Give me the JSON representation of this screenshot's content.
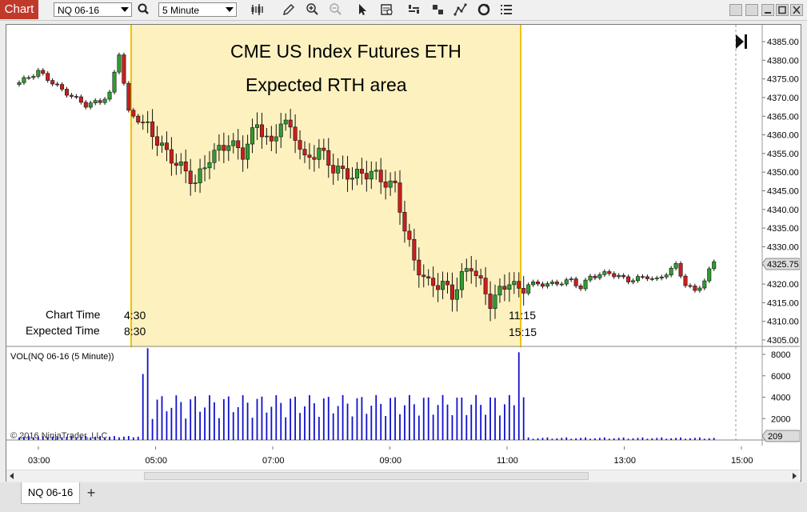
{
  "toolbar": {
    "chart_tab": "Chart",
    "instrument": "NQ 06-16",
    "interval": "5 Minute",
    "icons": [
      "bars-type-icon",
      "pencil-icon",
      "zoom-in-icon",
      "zoom-out-icon",
      "pointer-icon",
      "data-box-icon",
      "chart-properties-icon",
      "hierarchy-icon",
      "strategy-icon",
      "reload-icon",
      "list-icon"
    ]
  },
  "window": {
    "buttons": [
      "tile-icon",
      "restore-down-icon",
      "minimize-icon",
      "maximize-icon",
      "close-icon"
    ]
  },
  "chart": {
    "title_line1": "CME US Index Futures ETH",
    "title_line2": "Expected RTH area",
    "chart_time_label": "Chart Time",
    "chart_time_start": "4:30",
    "chart_time_end": "11:15",
    "expected_time_label": "Expected Time",
    "expected_time_start": "8:30",
    "expected_time_end": "15:15",
    "volume_label": "VOL(NQ 06-16 (5 Minute))",
    "copyright": "© 2016 NinjaTrader, LLC",
    "price_tag": "4325.75",
    "volume_tag": "209",
    "price_ticks": [
      "4385.00",
      "4380.00",
      "4375.00",
      "4370.00",
      "4365.00",
      "4360.00",
      "4355.00",
      "4350.00",
      "4345.00",
      "4340.00",
      "4335.00",
      "4330.00",
      "4325.00",
      "4320.00",
      "4315.00",
      "4310.00",
      "4305.00"
    ],
    "volume_ticks": [
      "8000",
      "6000",
      "4000",
      "2000"
    ],
    "time_ticks": [
      "03:00",
      "05:00",
      "07:00",
      "09:00",
      "11:00",
      "13:00",
      "15:00"
    ],
    "colors": {
      "up": "#2e9e2e",
      "down": "#cc1e1e",
      "highlight": "#fdf1bf",
      "highlight_border": "#f2c200",
      "volume": "#1010cc"
    }
  },
  "chart_data": {
    "type": "candlestick",
    "instrument": "NQ 06-16",
    "interval": "5 Minute",
    "ylim": [
      4305,
      4387
    ],
    "highlight": {
      "start": "04:30",
      "end": "11:15"
    },
    "price_now": 4325.75,
    "volume_now": 209,
    "volume_ylim": [
      0,
      8400
    ]
  },
  "tabs": {
    "active": "NQ 06-16",
    "add": "+"
  }
}
